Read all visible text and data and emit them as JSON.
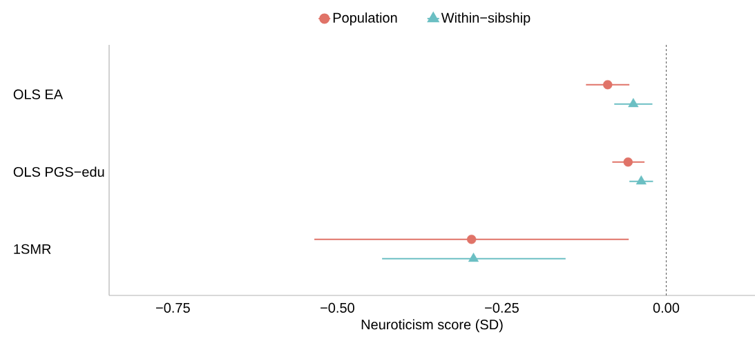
{
  "chart_data": {
    "type": "scatter",
    "orientation": "horizontal",
    "xlabel": "Neuroticism score (SD)",
    "categories": [
      "OLS EA",
      "OLS PGS−edu",
      "1SMR"
    ],
    "series": [
      {
        "name": "Population",
        "color": "#E07368",
        "marker": "circle",
        "values": [
          -0.089,
          -0.058,
          -0.296
        ],
        "errors": [
          [
            -0.122,
            -0.056
          ],
          [
            -0.082,
            -0.033
          ],
          [
            -0.535,
            -0.057
          ]
        ]
      },
      {
        "name": "Within−sibship",
        "color": "#6BBFC3",
        "marker": "triangle",
        "values": [
          -0.05,
          -0.038,
          -0.293
        ],
        "errors": [
          [
            -0.079,
            -0.021
          ],
          [
            -0.056,
            -0.02
          ],
          [
            -0.432,
            -0.153
          ]
        ]
      }
    ],
    "xlim": [
      -0.847,
      0.135
    ],
    "xticks": [
      {
        "value": -0.75,
        "label": "−0.75"
      },
      {
        "value": -0.5,
        "label": "−0.50"
      },
      {
        "value": -0.25,
        "label": "−0.25"
      },
      {
        "value": 0,
        "label": "0.00"
      }
    ],
    "ref_lines": [
      {
        "axis": "x",
        "value": 0,
        "color": "#555555",
        "line_style": "dashed"
      }
    ],
    "legend": "top",
    "grid": false
  }
}
